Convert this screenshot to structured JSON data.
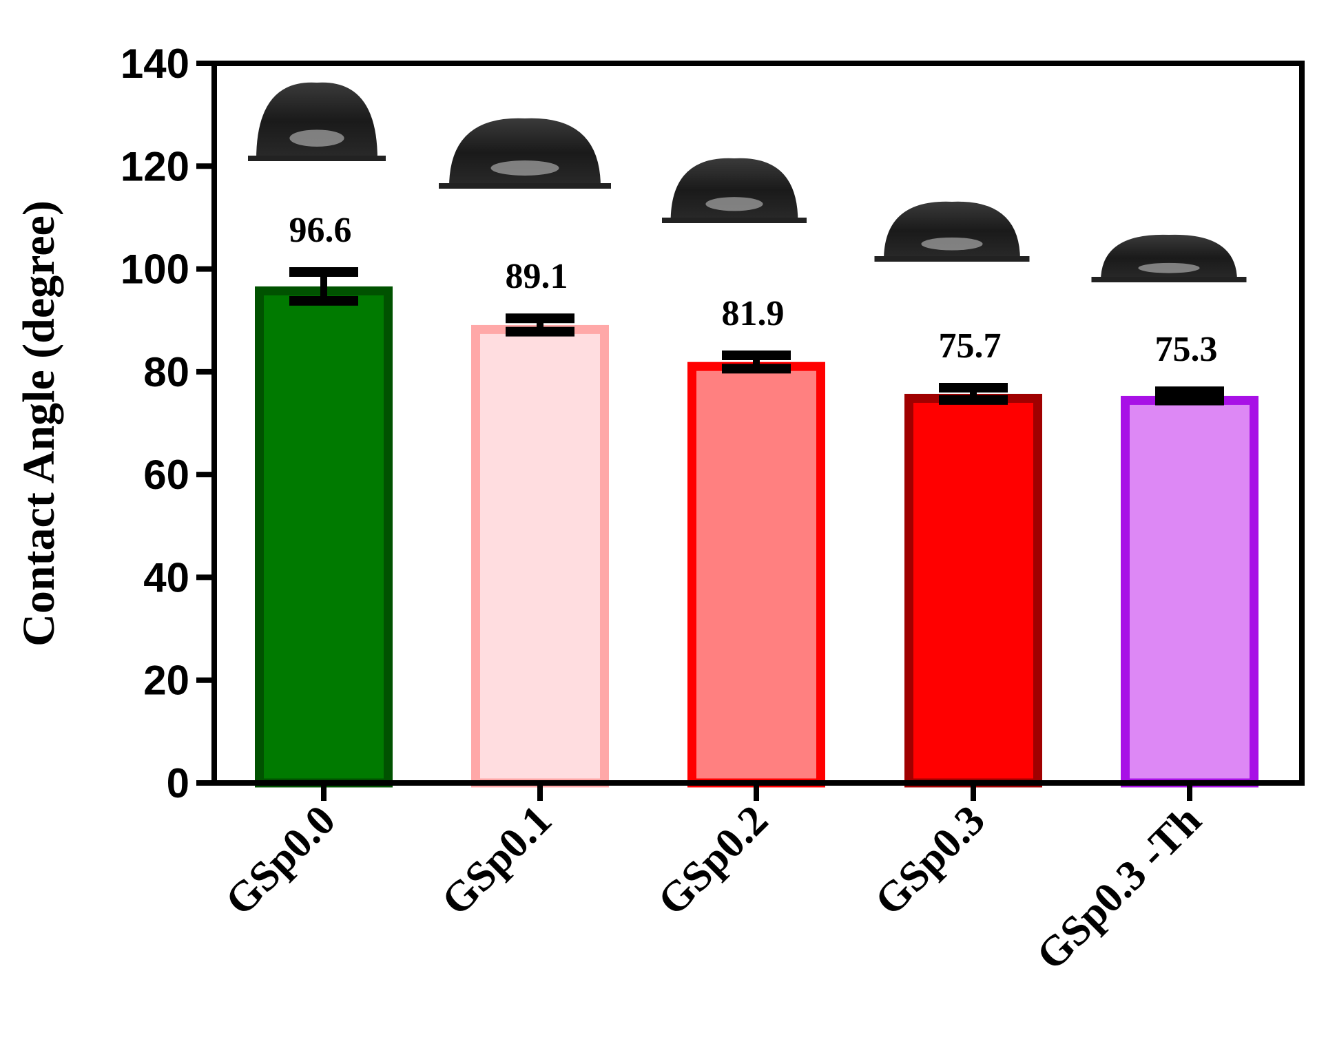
{
  "chart_data": {
    "type": "bar",
    "title": "",
    "xlabel": "",
    "ylabel": "Contact Angle (degree)",
    "ylim": [
      0,
      140
    ],
    "yticks": [
      0,
      20,
      40,
      60,
      80,
      100,
      120,
      140
    ],
    "grid": false,
    "categories": [
      "GSp0.0",
      "GSp0.1",
      "GSp0.2",
      "GSp0.3",
      "GSp0.3 -Th"
    ],
    "values": [
      96.6,
      89.1,
      81.9,
      75.7,
      75.3
    ],
    "error": [
      2.8,
      1.3,
      1.3,
      1.2,
      0.9
    ],
    "value_labels": [
      "96.6",
      "89.1",
      "81.9",
      "75.7",
      "75.3"
    ],
    "fill_colors": [
      "#007a00",
      "#ffdde0",
      "#ff8080",
      "#ff0000",
      "#dd88f5"
    ],
    "edge_colors": [
      "#005200",
      "#ffa8a8",
      "#ff0000",
      "#a00000",
      "#a810e6"
    ],
    "annotations": "droplet photo inset above each bar"
  }
}
